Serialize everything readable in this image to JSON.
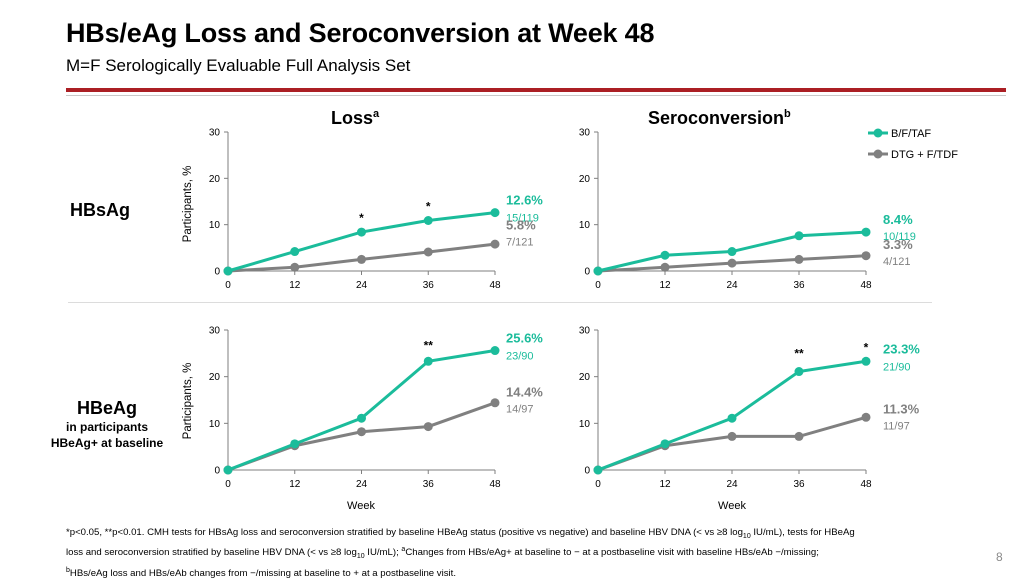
{
  "header": {
    "title": "HBs/eAg Loss and Seroconversion at Week 48",
    "subtitle": "M=F Serologically Evaluable Full Analysis Set"
  },
  "columns": {
    "loss": "Loss",
    "loss_sup": "a",
    "sero": "Seroconversion",
    "sero_sup": "b"
  },
  "rows": {
    "hbsag": "HBsAg",
    "hbeag": "HBeAg",
    "hbeag_sub1": "in participants",
    "hbeag_sub2": "HBeAg+ at baseline"
  },
  "legend": [
    "B/F/TAF",
    "DTG + F/TDF"
  ],
  "colors": {
    "bftaf": "#1bbc9b",
    "dtg": "#808080",
    "axis": "#7f7f7f"
  },
  "axis_labels": {
    "y": "Participants, %",
    "x": "Week"
  },
  "footnote": {
    "l1a": "*p<0.05, **p<0.01. CMH tests for HBsAg loss and seroconversion stratified by baseline HBeAg status (positive vs negative) and baseline HBV DNA (< vs ≥8 log",
    "l1sub": "10",
    "l1b": " IU/mL), tests for HBeAg",
    "l2a": "loss and seroconversion stratified by baseline HBV DNA (< vs ≥8 log",
    "l2sub": "10",
    "l2b": " IU/mL); ",
    "l2sup": "a",
    "l2c": "Changes from HBs/eAg+ at baseline to − at a postbaseline visit with baseline HBs/eAb −/missing;",
    "l3sup": "b",
    "l3a": "HBs/eAg loss and HBs/eAb changes from −/missing at baseline to + at a postbaseline visit."
  },
  "page_number": "8",
  "chart_data": [
    {
      "id": "hbsag-loss",
      "type": "line",
      "title": "HBsAg Loss",
      "x": [
        0,
        12,
        24,
        36,
        48
      ],
      "ylim": [
        0,
        30
      ],
      "yticks": [
        0,
        10,
        20,
        30
      ],
      "series": [
        {
          "name": "B/F/TAF",
          "values": [
            0,
            4.2,
            8.4,
            10.9,
            12.6
          ],
          "pct_label": "12.6%",
          "frac_label": "15/119"
        },
        {
          "name": "DTG + F/TDF",
          "values": [
            0,
            0.8,
            2.5,
            4.1,
            5.8
          ],
          "pct_label": "5.8%",
          "frac_label": "7/121"
        }
      ],
      "annotations": [
        {
          "x": 24,
          "text": "*"
        },
        {
          "x": 36,
          "text": "*"
        }
      ]
    },
    {
      "id": "hbsag-sero",
      "type": "line",
      "title": "HBsAg Seroconversion",
      "x": [
        0,
        12,
        24,
        36,
        48
      ],
      "ylim": [
        0,
        30
      ],
      "yticks": [
        0,
        10,
        20,
        30
      ],
      "series": [
        {
          "name": "B/F/TAF",
          "values": [
            0,
            3.4,
            4.2,
            7.6,
            8.4
          ],
          "pct_label": "8.4%",
          "frac_label": "10/119"
        },
        {
          "name": "DTG + F/TDF",
          "values": [
            0,
            0.8,
            1.7,
            2.5,
            3.3
          ],
          "pct_label": "3.3%",
          "frac_label": "4/121"
        }
      ],
      "annotations": []
    },
    {
      "id": "hbeag-loss",
      "type": "line",
      "title": "HBeAg Loss",
      "x": [
        0,
        12,
        24,
        36,
        48
      ],
      "ylim": [
        0,
        30
      ],
      "yticks": [
        0,
        10,
        20,
        30
      ],
      "series": [
        {
          "name": "B/F/TAF",
          "values": [
            0,
            5.6,
            11.1,
            23.3,
            25.6
          ],
          "pct_label": "25.6%",
          "frac_label": "23/90"
        },
        {
          "name": "DTG + F/TDF",
          "values": [
            0,
            5.2,
            8.2,
            9.3,
            14.4
          ],
          "pct_label": "14.4%",
          "frac_label": "14/97"
        }
      ],
      "annotations": [
        {
          "x": 36,
          "text": "**"
        }
      ]
    },
    {
      "id": "hbeag-sero",
      "type": "line",
      "title": "HBeAg Seroconversion",
      "x": [
        0,
        12,
        24,
        36,
        48
      ],
      "ylim": [
        0,
        30
      ],
      "yticks": [
        0,
        10,
        20,
        30
      ],
      "series": [
        {
          "name": "B/F/TAF",
          "values": [
            0,
            5.6,
            11.1,
            21.1,
            23.3
          ],
          "pct_label": "23.3%",
          "frac_label": "21/90"
        },
        {
          "name": "DTG + F/TDF",
          "values": [
            0,
            5.2,
            7.2,
            7.2,
            11.3
          ],
          "pct_label": "11.3%",
          "frac_label": "11/97"
        }
      ],
      "annotations": [
        {
          "x": 36,
          "text": "**"
        },
        {
          "x": 48,
          "text": "*"
        }
      ]
    }
  ]
}
